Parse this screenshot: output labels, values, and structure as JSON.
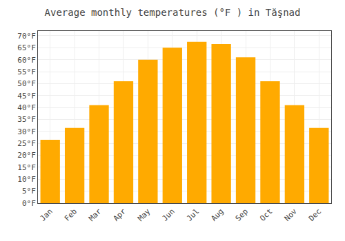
{
  "chart_data": {
    "type": "bar",
    "title": "Average monthly temperatures (°F ) in Tăşnad",
    "categories": [
      "Jan",
      "Feb",
      "Mar",
      "Apr",
      "May",
      "Jun",
      "Jul",
      "Aug",
      "Sep",
      "Oct",
      "Nov",
      "Dec"
    ],
    "values": [
      26.5,
      31.5,
      41.0,
      51.0,
      60.0,
      65.0,
      67.5,
      66.5,
      61.0,
      51.0,
      41.0,
      31.5
    ],
    "color": "#FFAA00",
    "ylim": [
      0,
      72
    ],
    "yticks": [
      {
        "value": 0,
        "label": "0°F"
      },
      {
        "value": 5,
        "label": "5°F"
      },
      {
        "value": 10,
        "label": "10°F"
      },
      {
        "value": 15,
        "label": "15°F"
      },
      {
        "value": 20,
        "label": "20°F"
      },
      {
        "value": 25,
        "label": "25°F"
      },
      {
        "value": 30,
        "label": "30°F"
      },
      {
        "value": 35,
        "label": "35°F"
      },
      {
        "value": 40,
        "label": "40°F"
      },
      {
        "value": 45,
        "label": "45°F"
      },
      {
        "value": 50,
        "label": "50°F"
      },
      {
        "value": 55,
        "label": "55°F"
      },
      {
        "value": 60,
        "label": "60°F"
      },
      {
        "value": 65,
        "label": "65°F"
      },
      {
        "value": 70,
        "label": "70°F"
      }
    ],
    "grid": true
  }
}
